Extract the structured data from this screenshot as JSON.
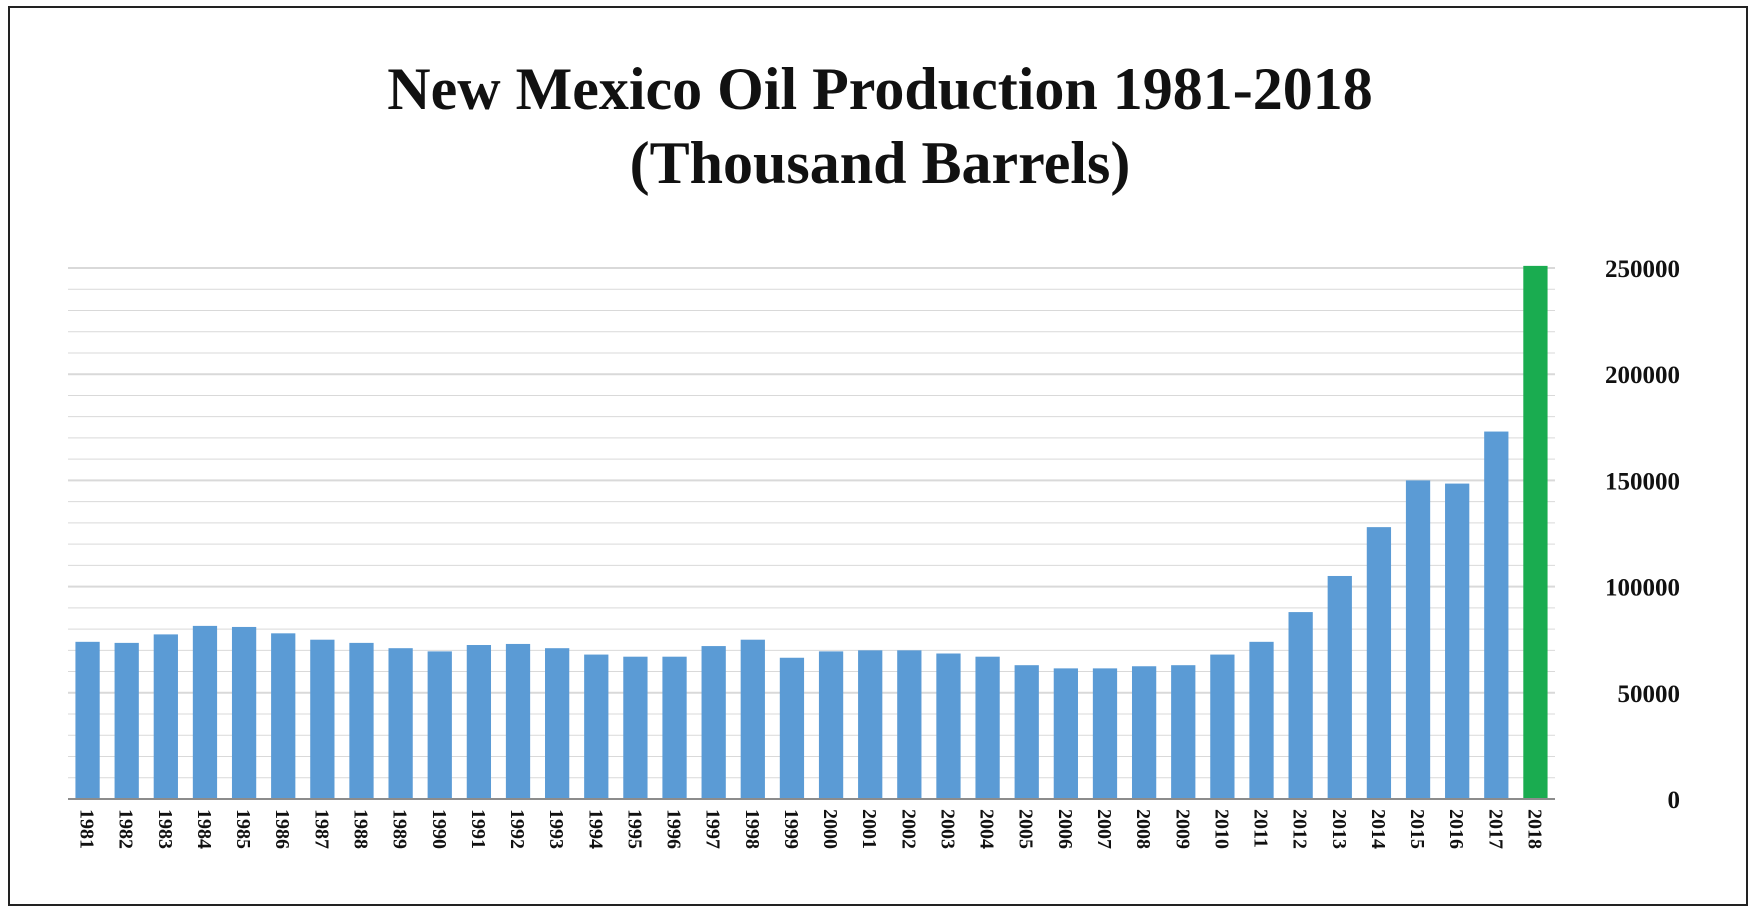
{
  "chart_data": {
    "type": "bar",
    "title": "New Mexico Oil Production 1981-2018",
    "subtitle": "(Thousand Barrels)",
    "xlabel": "",
    "ylabel": "",
    "ylim": [
      0,
      250000
    ],
    "yticks": [
      "0",
      "50000",
      "100000",
      "150000",
      "200000",
      "250000"
    ],
    "y_axis_side": "right",
    "grid": true,
    "legend": "none",
    "categories": [
      "1981",
      "1982",
      "1983",
      "1984",
      "1985",
      "1986",
      "1987",
      "1988",
      "1989",
      "1990",
      "1991",
      "1992",
      "1993",
      "1994",
      "1995",
      "1996",
      "1997",
      "1998",
      "1999",
      "2000",
      "2001",
      "2002",
      "2003",
      "2004",
      "2005",
      "2006",
      "2007",
      "2008",
      "2009",
      "2010",
      "2011",
      "2012",
      "2013",
      "2014",
      "2015",
      "2016",
      "2017",
      "2018"
    ],
    "values": [
      74000,
      73500,
      77500,
      81500,
      81000,
      78000,
      75000,
      73500,
      71000,
      69500,
      72500,
      73000,
      71000,
      68000,
      67000,
      67000,
      72000,
      75000,
      66500,
      69500,
      70000,
      70000,
      68500,
      67000,
      63000,
      61500,
      61500,
      62500,
      63000,
      68000,
      74000,
      88000,
      105000,
      128000,
      150000,
      148500,
      173000,
      251000
    ],
    "colors": {
      "bar": "#5b9bd5",
      "highlight": "#1aac50",
      "grid": "#d9d9d9",
      "axis": "#8c8c8c"
    },
    "highlight_index": 37
  }
}
